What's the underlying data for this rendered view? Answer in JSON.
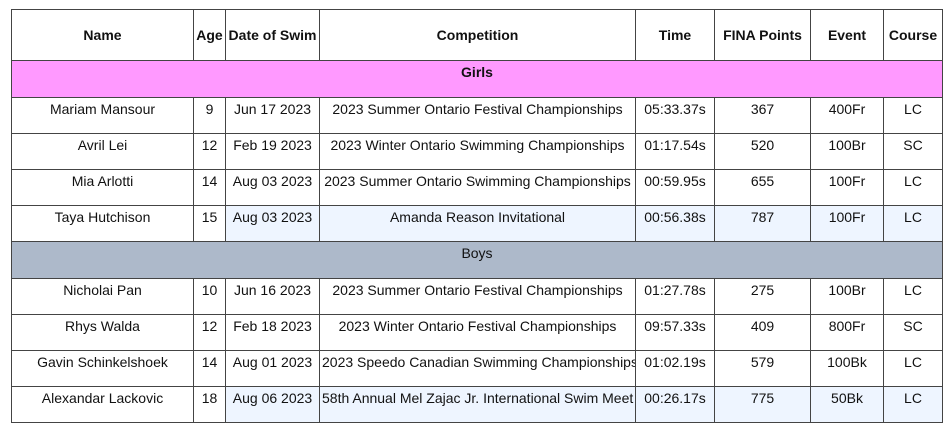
{
  "headers": [
    "Name",
    "Age",
    "Date of Swim",
    "Competition",
    "Time",
    "FINA Points",
    "Event",
    "Course"
  ],
  "colors": {
    "girls_section": "#ff99ff",
    "boys_section": "#adb9ca",
    "highlight": "#eef5ff"
  },
  "girls": {
    "label": "Girls",
    "rows": [
      {
        "name": "Mariam Mansour",
        "age": "9",
        "date": "Jun 17 2023",
        "competition": "2023 Summer Ontario Festival Championships",
        "time": "05:33.37s",
        "points": "367",
        "event": "400Fr",
        "course": "LC",
        "highlight": false
      },
      {
        "name": "Avril Lei",
        "age": "12",
        "date": "Feb 19 2023",
        "competition": "2023 Winter Ontario Swimming Championships",
        "time": "01:17.54s",
        "points": "520",
        "event": "100Br",
        "course": "SC",
        "highlight": false
      },
      {
        "name": "Mia Arlotti",
        "age": "14",
        "date": "Aug 03 2023",
        "competition": "2023 Summer Ontario Swimming Championships",
        "time": "00:59.95s",
        "points": "655",
        "event": "100Fr",
        "course": "LC",
        "highlight": false
      },
      {
        "name": "Taya Hutchison",
        "age": "15",
        "date": "Aug 03 2023",
        "competition": "Amanda Reason Invitational",
        "time": "00:56.38s",
        "points": "787",
        "event": "100Fr",
        "course": "LC",
        "highlight": true
      }
    ]
  },
  "boys": {
    "label": "Boys",
    "rows": [
      {
        "name": "Nicholai Pan",
        "age": "10",
        "date": "Jun 16 2023",
        "competition": "2023 Summer Ontario Festival Championships",
        "time": "01:27.78s",
        "points": "275",
        "event": "100Br",
        "course": "LC",
        "highlight": false
      },
      {
        "name": "Rhys Walda",
        "age": "12",
        "date": "Feb 18 2023",
        "competition": "2023 Winter Ontario Festival Championships",
        "time": "09:57.33s",
        "points": "409",
        "event": "800Fr",
        "course": "SC",
        "highlight": false
      },
      {
        "name": "Gavin Schinkelshoek",
        "age": "14",
        "date": "Aug 01 2023",
        "competition": "2023 Speedo Canadian Swimming Championships",
        "time": "01:02.19s",
        "points": "579",
        "event": "100Bk",
        "course": "LC",
        "highlight": false
      },
      {
        "name": "Alexandar Lackovic",
        "age": "18",
        "date": "Aug 06 2023",
        "competition": "58th Annual Mel Zajac Jr. International Swim Meet",
        "time": "00:26.17s",
        "points": "775",
        "event": "50Bk",
        "course": "LC",
        "highlight": true
      }
    ]
  }
}
